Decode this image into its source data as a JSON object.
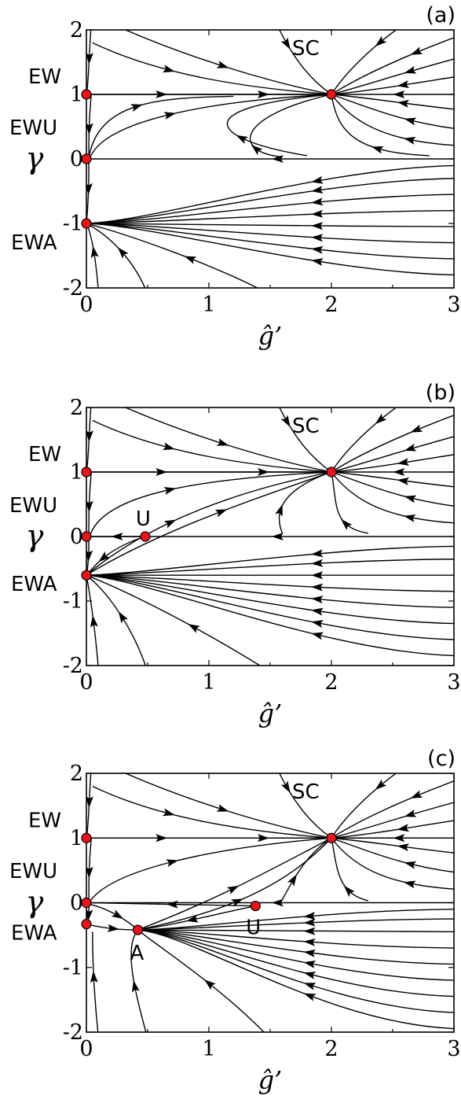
{
  "chart_data": [
    {
      "type": "scatter",
      "panel_label": "(a)",
      "xlabel": "ĝ’",
      "ylabel": "γ",
      "xlim": [
        0,
        3
      ],
      "ylim": [
        -2,
        2
      ],
      "xticks": [
        "0",
        "1",
        "2",
        "3"
      ],
      "yticks": [
        "2",
        "1",
        "0",
        "-1",
        "-2"
      ],
      "fixed_points": [
        {
          "label": "EW",
          "x": 0,
          "y": 1
        },
        {
          "label": "EWU",
          "x": 0,
          "y": 0
        },
        {
          "label": "EWA",
          "x": 0,
          "y": -1
        },
        {
          "label": "SC",
          "x": 2,
          "y": 1
        }
      ]
    },
    {
      "type": "scatter",
      "panel_label": "(b)",
      "xlabel": "ĝ’",
      "ylabel": "γ",
      "xlim": [
        0,
        3
      ],
      "ylim": [
        -2,
        2
      ],
      "xticks": [
        "0",
        "1",
        "2",
        "3"
      ],
      "yticks": [
        "2",
        "1",
        "0",
        "-1",
        "-2"
      ],
      "fixed_points": [
        {
          "label": "EW",
          "x": 0,
          "y": 1
        },
        {
          "label": "EWU",
          "x": 0,
          "y": 0
        },
        {
          "label": "EWA",
          "x": 0,
          "y": -0.6
        },
        {
          "label": "U",
          "x": 0.48,
          "y": 0
        },
        {
          "label": "SC",
          "x": 2,
          "y": 1
        }
      ]
    },
    {
      "type": "scatter",
      "panel_label": "(c)",
      "xlabel": "ĝ’",
      "ylabel": "γ",
      "xlim": [
        0,
        3
      ],
      "ylim": [
        -2,
        2
      ],
      "xticks": [
        "0",
        "1",
        "2",
        "3"
      ],
      "yticks": [
        "2",
        "1",
        "0",
        "-1",
        "-2"
      ],
      "fixed_points": [
        {
          "label": "EW",
          "x": 0,
          "y": 1
        },
        {
          "label": "EWU",
          "x": 0,
          "y": 0
        },
        {
          "label": "EWA",
          "x": 0,
          "y": -0.33
        },
        {
          "label": "A",
          "x": 0.42,
          "y": -0.42
        },
        {
          "label": "U",
          "x": 1.38,
          "y": -0.05
        },
        {
          "label": "SC",
          "x": 2,
          "y": 1
        }
      ]
    }
  ]
}
